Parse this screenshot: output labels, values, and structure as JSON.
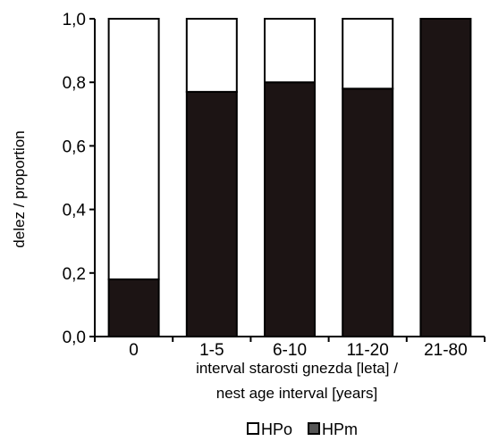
{
  "chart_data": {
    "type": "bar",
    "stacked": true,
    "categories": [
      "0",
      "1-5",
      "6-10",
      "11-20",
      "21-80"
    ],
    "series": [
      {
        "name": "HPm",
        "values": [
          0.18,
          0.77,
          0.8,
          0.78,
          1.0
        ],
        "color": "#1c1414"
      },
      {
        "name": "HPo",
        "values": [
          0.82,
          0.23,
          0.2,
          0.22,
          0.0
        ],
        "color": "#ffffff"
      }
    ],
    "ylim": [
      0,
      1.0
    ],
    "yticks": [
      "0,0",
      "0,2",
      "0,4",
      "0,6",
      "0,8",
      "1,0"
    ],
    "ylabel": "delez / proportion",
    "xlabel": [
      "interval starosti gnezda [leta] /",
      "nest age interval [years]"
    ],
    "legend": [
      "HPo",
      "HPm"
    ],
    "legend_position": "bottom",
    "grid": false
  }
}
